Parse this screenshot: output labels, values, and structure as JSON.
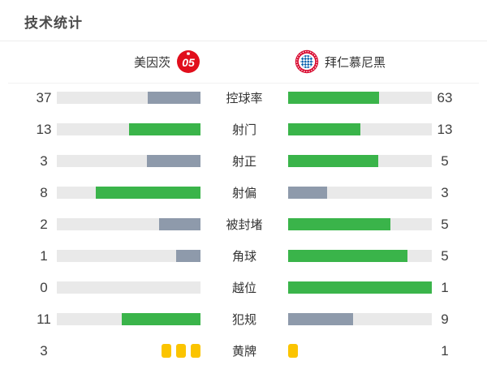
{
  "title": "技术统计",
  "header": {
    "home_team": "美因茨",
    "away_team": "拜仁慕尼黑",
    "home_crest_label": "05"
  },
  "colors": {
    "green": "#3ab44a",
    "gray": "#8e9aab",
    "track": "#e9e9e9",
    "card_yellow": "#fbc400",
    "mainz_red": "#e10e1c",
    "bayern_red": "#d8062c",
    "bayern_blue": "#0a62ae"
  },
  "rows": [
    {
      "kind": "bar",
      "label": "控球率",
      "home": "37",
      "away": "63",
      "home_pct": 37,
      "away_pct": 63,
      "home_color": "gray",
      "away_color": "green"
    },
    {
      "kind": "bar",
      "label": "射门",
      "home": "13",
      "away": "13",
      "home_pct": 50,
      "away_pct": 50,
      "home_color": "green",
      "away_color": "green"
    },
    {
      "kind": "bar",
      "label": "射正",
      "home": "3",
      "away": "5",
      "home_pct": 37.5,
      "away_pct": 62.5,
      "home_color": "gray",
      "away_color": "green"
    },
    {
      "kind": "bar",
      "label": "射偏",
      "home": "8",
      "away": "3",
      "home_pct": 72.7,
      "away_pct": 27.3,
      "home_color": "green",
      "away_color": "gray"
    },
    {
      "kind": "bar",
      "label": "被封堵",
      "home": "2",
      "away": "5",
      "home_pct": 28.6,
      "away_pct": 71.4,
      "home_color": "gray",
      "away_color": "green"
    },
    {
      "kind": "bar",
      "label": "角球",
      "home": "1",
      "away": "5",
      "home_pct": 16.7,
      "away_pct": 83.3,
      "home_color": "gray",
      "away_color": "green"
    },
    {
      "kind": "bar",
      "label": "越位",
      "home": "0",
      "away": "1",
      "home_pct": 0,
      "away_pct": 100,
      "home_color": "gray",
      "away_color": "green"
    },
    {
      "kind": "bar",
      "label": "犯规",
      "home": "11",
      "away": "9",
      "home_pct": 55,
      "away_pct": 45,
      "home_color": "green",
      "away_color": "gray"
    },
    {
      "kind": "cards",
      "label": "黄牌",
      "home": "3",
      "away": "1",
      "home_cards": 3,
      "away_cards": 1
    }
  ],
  "chart_data": {
    "type": "bar",
    "title": "技术统计",
    "orientation": "horizontal-paired",
    "categories": [
      "控球率",
      "射门",
      "射正",
      "射偏",
      "被封堵",
      "角球",
      "越位",
      "犯规",
      "黄牌"
    ],
    "series": [
      {
        "name": "美因茨",
        "values": [
          37,
          13,
          3,
          8,
          2,
          1,
          0,
          11,
          3
        ]
      },
      {
        "name": "拜仁慕尼黑",
        "values": [
          63,
          13,
          5,
          3,
          5,
          5,
          1,
          9,
          1
        ]
      }
    ],
    "legend_position": "top",
    "notes": "每行条形按双方数值占比填充；较高一方为绿色，较低一方为灰色，持平均为绿色；黄牌行以黄牌图标显示"
  }
}
